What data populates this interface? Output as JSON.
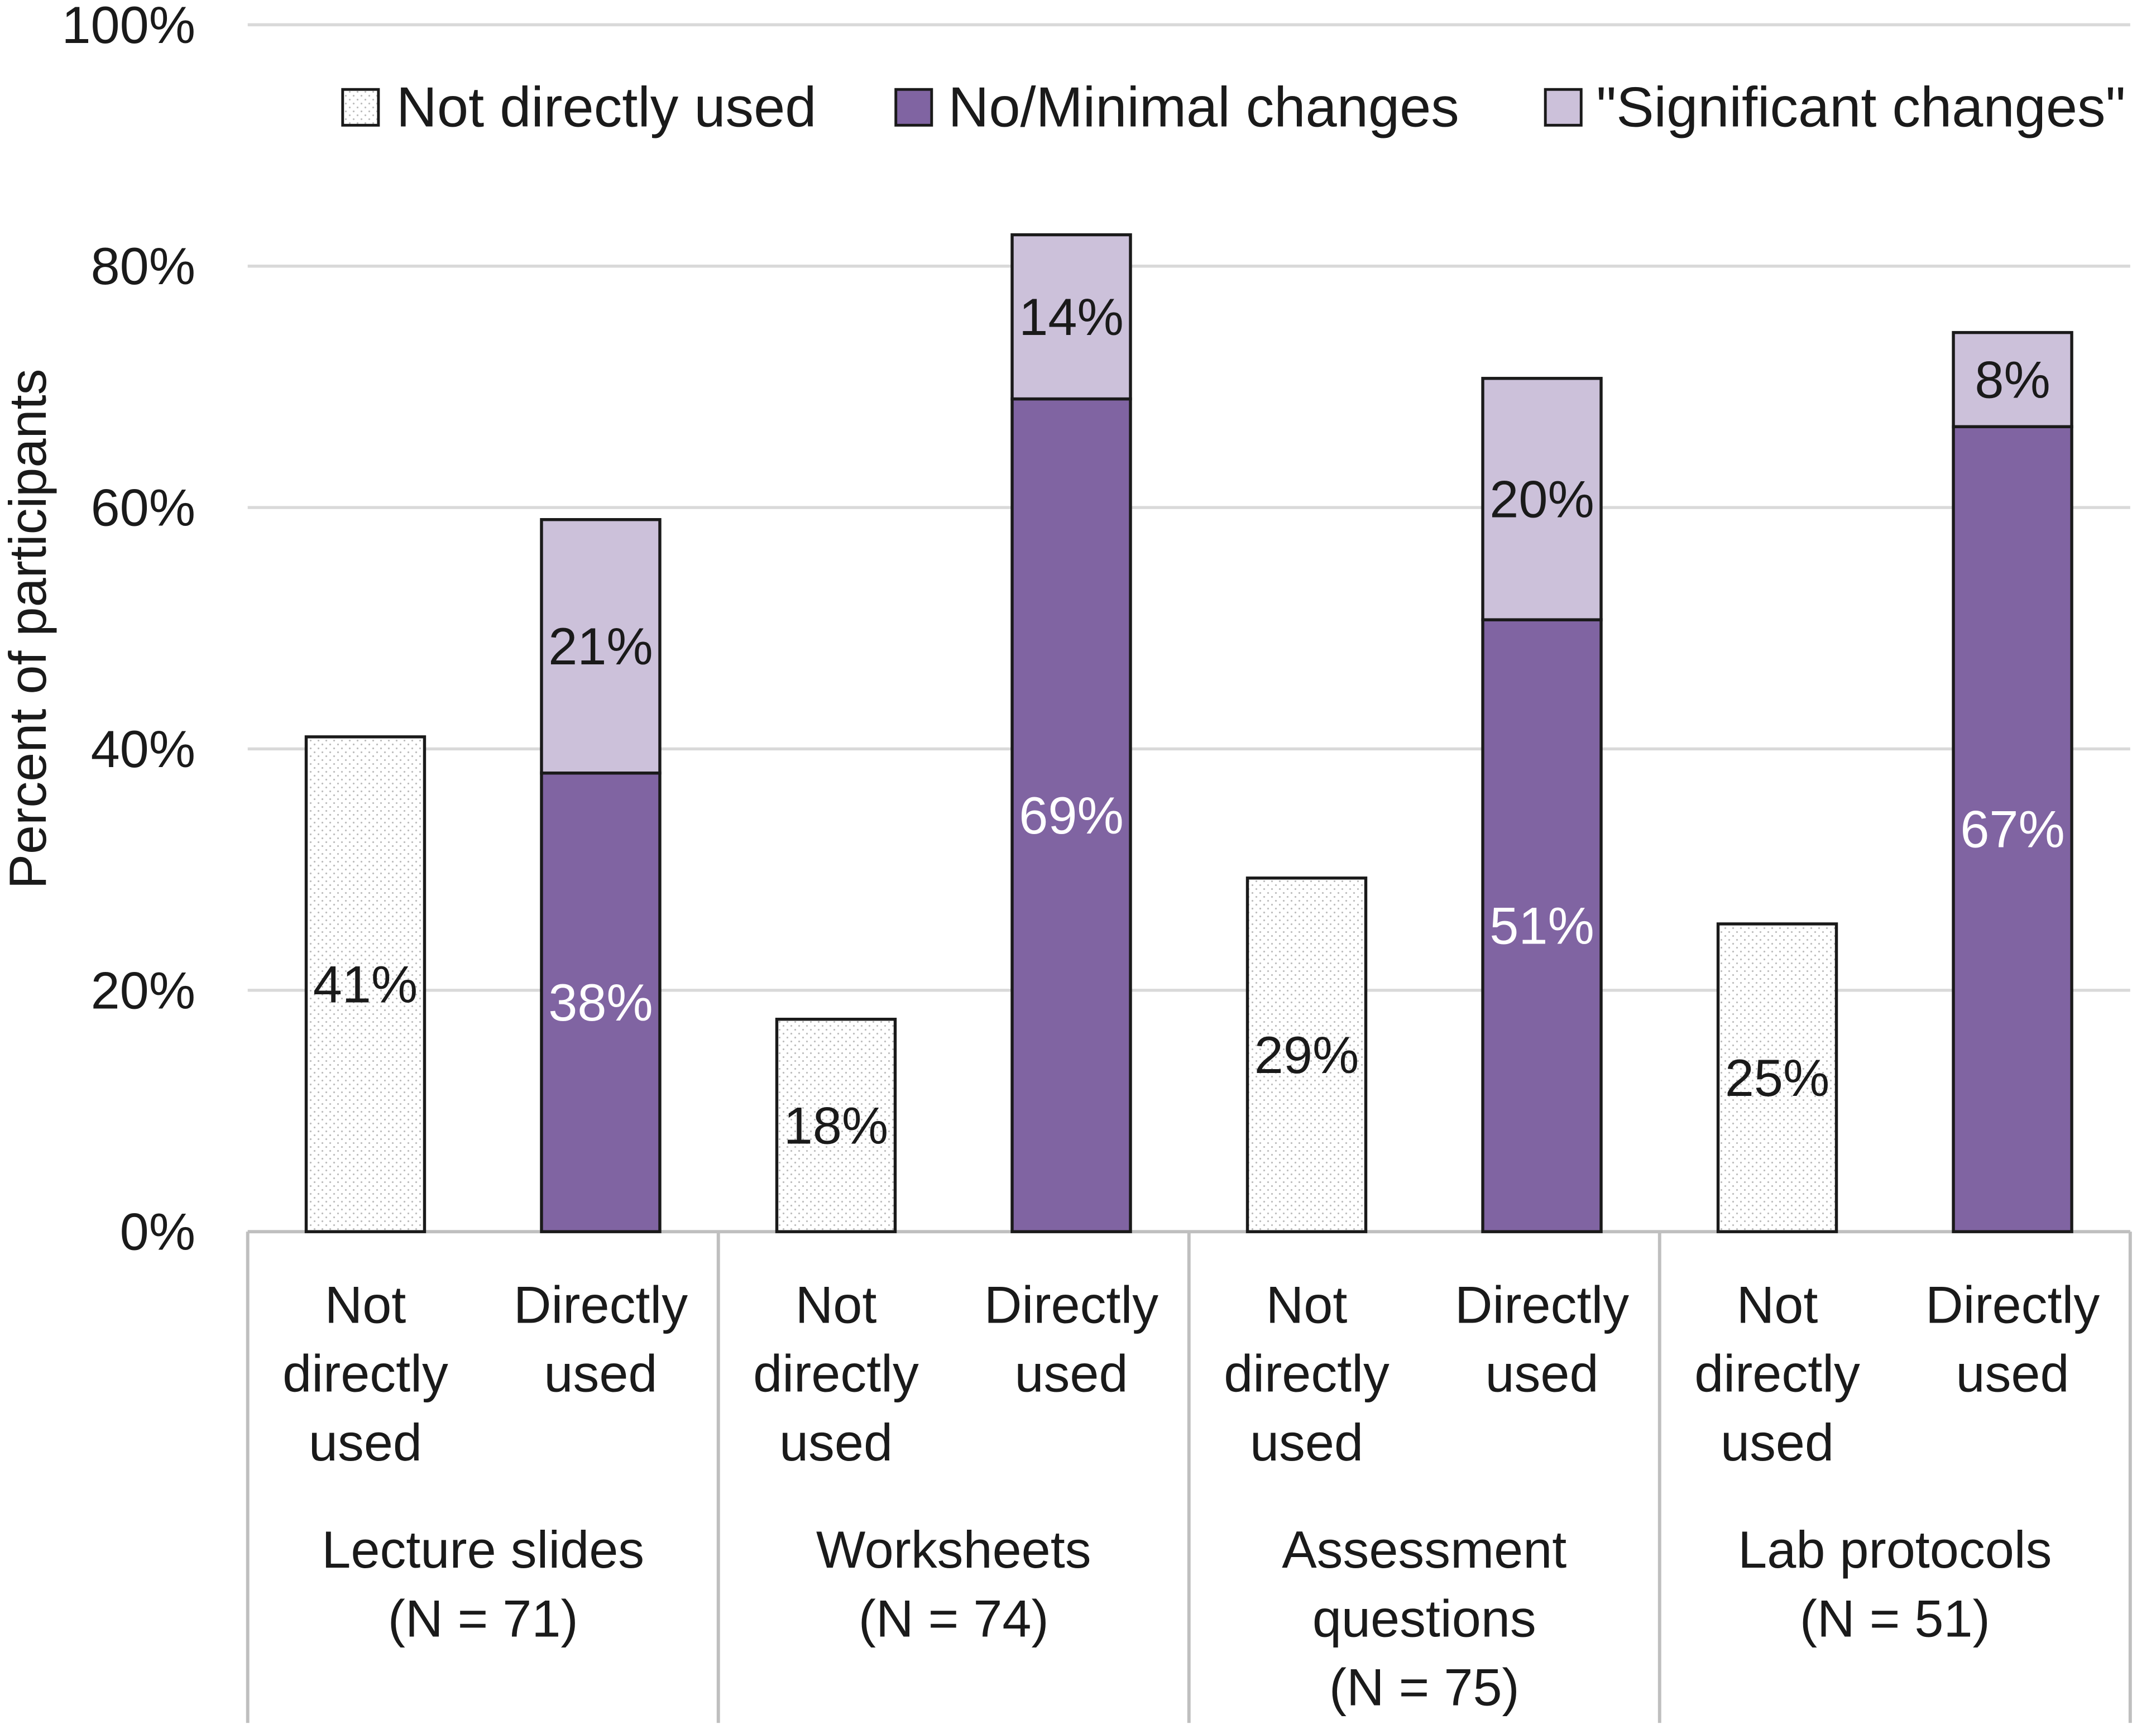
{
  "chart_data": {
    "type": "bar",
    "stacked": true,
    "title": "",
    "ylabel": "Percent of participants",
    "xlabel": "",
    "ylim": [
      0,
      100
    ],
    "yticks": [
      {
        "value": 0,
        "label": "0%"
      },
      {
        "value": 20,
        "label": "20%"
      },
      {
        "value": 40,
        "label": "40%"
      },
      {
        "value": 60,
        "label": "60%"
      },
      {
        "value": 80,
        "label": "80%"
      },
      {
        "value": 100,
        "label": "100%"
      }
    ],
    "grid": true,
    "legend_position": "top-right",
    "legend": [
      {
        "key": "not_used",
        "label": "Not directly used"
      },
      {
        "key": "minimal",
        "label": "No/Minimal changes"
      },
      {
        "key": "significant",
        "label": "\"Significant changes\""
      }
    ],
    "groups": [
      {
        "label_lines": [
          "Lecture slides",
          "(N = 71)"
        ],
        "bars": [
          {
            "label_lines": [
              "Not",
              "directly",
              "used"
            ],
            "segments": [
              {
                "series": "not_used",
                "value": 41,
                "label": "41%"
              }
            ]
          },
          {
            "label_lines": [
              "Directly",
              "used"
            ],
            "segments": [
              {
                "series": "minimal",
                "value": 38,
                "label": "38%"
              },
              {
                "series": "significant",
                "value": 21,
                "label": "21%"
              }
            ]
          }
        ]
      },
      {
        "label_lines": [
          "Worksheets",
          "(N = 74)"
        ],
        "bars": [
          {
            "label_lines": [
              "Not",
              "directly",
              "used"
            ],
            "segments": [
              {
                "series": "not_used",
                "value": 17.6,
                "label": "18%"
              }
            ]
          },
          {
            "label_lines": [
              "Directly",
              "used"
            ],
            "segments": [
              {
                "series": "minimal",
                "value": 69,
                "label": "69%"
              },
              {
                "series": "significant",
                "value": 13.6,
                "label": "14%"
              }
            ]
          }
        ]
      },
      {
        "label_lines": [
          "Assessment",
          "questions",
          "(N = 75)"
        ],
        "bars": [
          {
            "label_lines": [
              "Not",
              "directly",
              "used"
            ],
            "segments": [
              {
                "series": "not_used",
                "value": 29.3,
                "label": "29%"
              }
            ]
          },
          {
            "label_lines": [
              "Directly",
              "used"
            ],
            "segments": [
              {
                "series": "minimal",
                "value": 50.7,
                "label": "51%"
              },
              {
                "series": "significant",
                "value": 20,
                "label": "20%"
              }
            ]
          }
        ]
      },
      {
        "label_lines": [
          "Lab protocols",
          "(N = 51)"
        ],
        "bars": [
          {
            "label_lines": [
              "Not",
              "directly",
              "used"
            ],
            "segments": [
              {
                "series": "not_used",
                "value": 25.5,
                "label": "25%"
              }
            ]
          },
          {
            "label_lines": [
              "Directly",
              "used"
            ],
            "segments": [
              {
                "series": "minimal",
                "value": 66.7,
                "label": "67%"
              },
              {
                "series": "significant",
                "value": 7.8,
                "label": "8%"
              }
            ]
          }
        ]
      }
    ],
    "colors": {
      "not_used": "#ffffff",
      "not_used_dots": "#bdbdbd",
      "minimal": "#8064a2",
      "significant": "#ccc1da",
      "outline": "#1a1a1a",
      "grid": "#d9d9d9",
      "axis": "#bfbfbf",
      "text": "#1a1a1a",
      "label_on_dark": "#ffffff"
    }
  }
}
